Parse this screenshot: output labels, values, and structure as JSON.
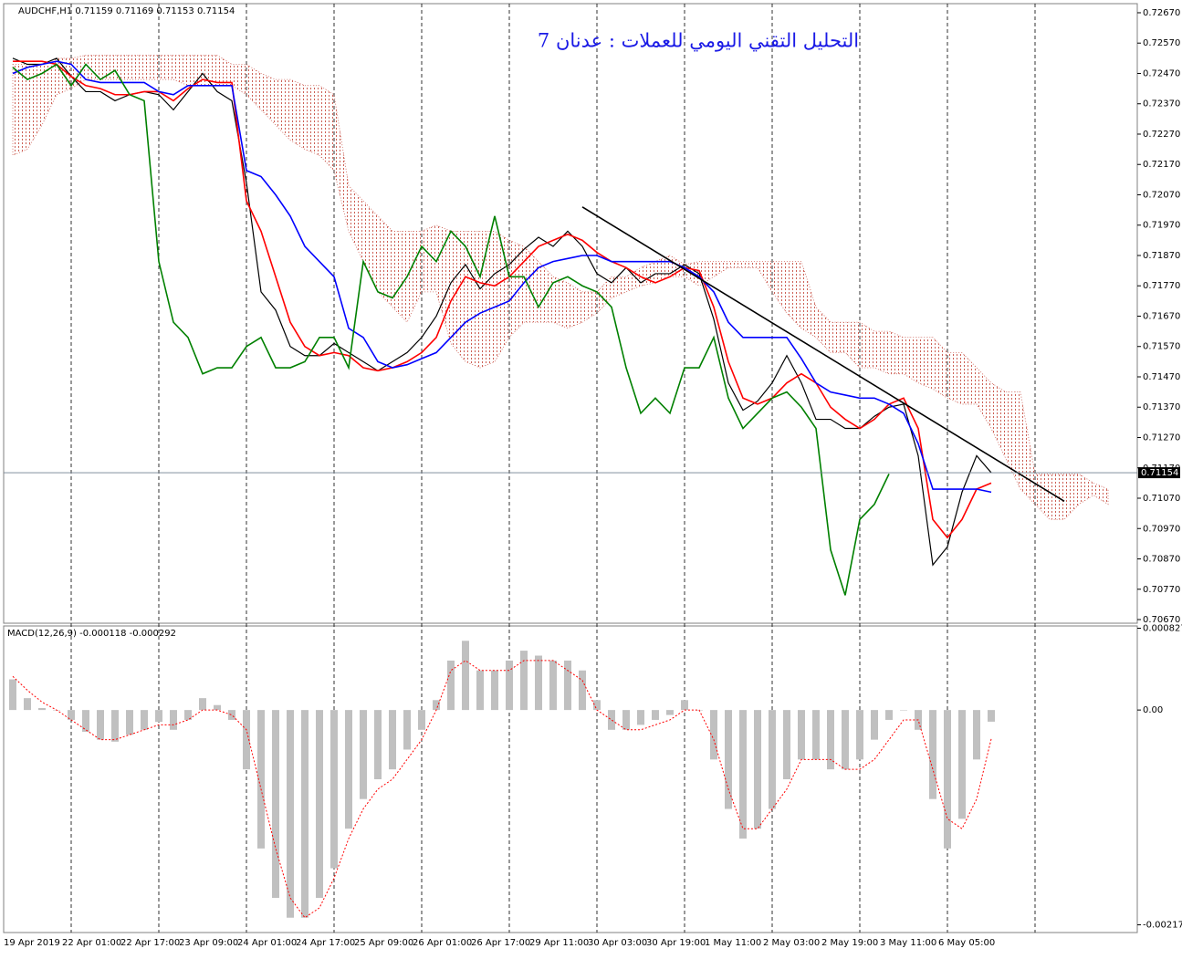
{
  "chart_data": [
    {
      "type": "line",
      "title": "التحليل التقني اليومي للعملات : عدنان 7",
      "symbol_info": "AUDCHF,H1  0.71159 0.71169 0.71153 0.71154",
      "categories": [
        "19 Apr 2019",
        null,
        null,
        null,
        "22 Apr 01:00",
        null,
        null,
        null,
        "22 Apr 17:00",
        null,
        null,
        null,
        "23 Apr 09:00",
        null,
        null,
        null,
        "24 Apr 01:00",
        null,
        null,
        null,
        "24 Apr 17:00",
        null,
        null,
        null,
        "25 Apr 09:00",
        null,
        null,
        null,
        "26 Apr 01:00",
        null,
        null,
        null,
        "26 Apr 17:00",
        null,
        null,
        null,
        "29 Apr 11:00",
        null,
        null,
        null,
        "30 Apr 03:00",
        null,
        null,
        null,
        "30 Apr 19:00",
        null,
        null,
        null,
        "1 May 11:00",
        null,
        null,
        null,
        "2 May 03:00",
        null,
        null,
        null,
        "2 May 19:00",
        null,
        null,
        null,
        "3 May 11:00",
        null,
        null,
        null,
        "6 May 05:00",
        null,
        null,
        null,
        null,
        null,
        null,
        null,
        null,
        null,
        null,
        null
      ],
      "ylim": [
        0.70658,
        0.727
      ],
      "yticks": [
        {
          "value": 0.7267,
          "label": "0.72670"
        },
        {
          "value": 0.7257,
          "label": "0.72570"
        },
        {
          "value": 0.7247,
          "label": "0.72470"
        },
        {
          "value": 0.7237,
          "label": "0.72370"
        },
        {
          "value": 0.7227,
          "label": "0.72270"
        },
        {
          "value": 0.7217,
          "label": "0.72170"
        },
        {
          "value": 0.7207,
          "label": "0.72070"
        },
        {
          "value": 0.7197,
          "label": "0.71970"
        },
        {
          "value": 0.7187,
          "label": "0.71870"
        },
        {
          "value": 0.7177,
          "label": "0.71770"
        },
        {
          "value": 0.7167,
          "label": "0.71670"
        },
        {
          "value": 0.7157,
          "label": "0.71570"
        },
        {
          "value": 0.7147,
          "label": "0.71470"
        },
        {
          "value": 0.7137,
          "label": "0.71370"
        },
        {
          "value": 0.7127,
          "label": "0.71270"
        },
        {
          "value": 0.7117,
          "label": "0.71170"
        },
        {
          "value": 0.7107,
          "label": "0.71070"
        },
        {
          "value": 0.7097,
          "label": "0.70970"
        },
        {
          "value": 0.7087,
          "label": "0.70870"
        },
        {
          "value": 0.7077,
          "label": "0.70770"
        },
        {
          "value": 0.7067,
          "label": "0.70670"
        }
      ],
      "grid": true,
      "cloud": {
        "color": "#c0392b",
        "upper": [
          0.725,
          0.725,
          0.725,
          0.7252,
          0.7252,
          0.7253,
          0.7253,
          0.7253,
          0.7253,
          0.7253,
          0.7253,
          0.7253,
          0.7253,
          0.7253,
          0.7253,
          0.725,
          0.725,
          0.7247,
          0.7245,
          0.7245,
          0.7243,
          0.7243,
          0.724,
          0.721,
          0.7205,
          0.72,
          0.7195,
          0.7195,
          0.7195,
          0.7197,
          0.7195,
          0.7195,
          0.7195,
          0.7195,
          0.7192,
          0.719,
          0.7185,
          0.718,
          0.7178,
          0.7175,
          0.7175,
          0.718,
          0.718,
          0.7183,
          0.7185,
          0.7187,
          0.7184,
          0.7185,
          0.7185,
          0.7185,
          0.7185,
          0.7185,
          0.7185,
          0.7185,
          0.7185,
          0.717,
          0.7165,
          0.7165,
          0.7165,
          0.7162,
          0.7162,
          0.716,
          0.716,
          0.716,
          0.7155,
          0.7155,
          0.715,
          0.7145,
          0.7142,
          0.7142,
          0.7115,
          0.7115,
          0.7115,
          0.7115,
          0.7112,
          0.711
        ],
        "lower": [
          0.722,
          0.7222,
          0.723,
          0.724,
          0.7242,
          0.7245,
          0.7245,
          0.7245,
          0.7245,
          0.7245,
          0.7245,
          0.7245,
          0.7243,
          0.7243,
          0.7243,
          0.7243,
          0.724,
          0.7235,
          0.723,
          0.7225,
          0.7222,
          0.722,
          0.7215,
          0.7195,
          0.7185,
          0.7175,
          0.717,
          0.7165,
          0.7175,
          0.7175,
          0.7158,
          0.7152,
          0.715,
          0.7152,
          0.716,
          0.7165,
          0.7165,
          0.7165,
          0.7163,
          0.7165,
          0.7168,
          0.7173,
          0.7175,
          0.7177,
          0.7178,
          0.718,
          0.718,
          0.7177,
          0.718,
          0.7183,
          0.7183,
          0.7183,
          0.7175,
          0.7168,
          0.7163,
          0.716,
          0.7155,
          0.7155,
          0.715,
          0.715,
          0.7148,
          0.7148,
          0.7145,
          0.7143,
          0.714,
          0.7138,
          0.7138,
          0.713,
          0.712,
          0.711,
          0.7105,
          0.71,
          0.71,
          0.7105,
          0.7108,
          0.7105
        ]
      },
      "series": [
        {
          "color": "#000000",
          "values": [
            0.7252,
            0.725,
            0.725,
            0.7252,
            0.7246,
            0.7241,
            0.7241,
            0.7238,
            0.724,
            0.7241,
            0.724,
            0.7235,
            0.7241,
            0.7247,
            0.7241,
            0.7238,
            0.7211,
            0.7175,
            0.7169,
            0.7157,
            0.7154,
            0.7154,
            0.7158,
            0.7155,
            0.7152,
            0.7149,
            0.7152,
            0.7155,
            0.716,
            0.7167,
            0.7178,
            0.7184,
            0.7176,
            0.7181,
            0.7184,
            0.7189,
            0.7193,
            0.719,
            0.7195,
            0.719,
            0.7181,
            0.7178,
            0.7183,
            0.7178,
            0.7181,
            0.7181,
            0.7184,
            0.7181,
            0.7166,
            0.7145,
            0.7136,
            0.7139,
            0.7145,
            0.7154,
            0.7145,
            0.7133,
            0.7133,
            0.713,
            0.713,
            0.7134,
            0.7137,
            0.7138,
            0.7121,
            0.7085,
            0.7091,
            0.7109,
            0.7121,
            0.71154,
            null,
            null,
            null,
            null,
            null,
            null,
            null,
            null
          ]
        },
        {
          "color": "#ff0000",
          "values": [
            0.7251,
            0.7251,
            0.7251,
            0.725,
            0.7246,
            0.7243,
            0.7242,
            0.724,
            0.724,
            0.7241,
            0.7241,
            0.7238,
            0.7242,
            0.7245,
            0.7244,
            0.7244,
            0.7205,
            0.7195,
            0.718,
            0.7165,
            0.7157,
            0.7154,
            0.7155,
            0.7154,
            0.715,
            0.7149,
            0.715,
            0.7152,
            0.7155,
            0.716,
            0.7172,
            0.718,
            0.7178,
            0.7177,
            0.718,
            0.7185,
            0.719,
            0.7192,
            0.7194,
            0.7192,
            0.7188,
            0.7185,
            0.7183,
            0.718,
            0.7178,
            0.718,
            0.7183,
            0.7182,
            0.717,
            0.7152,
            0.714,
            0.7138,
            0.714,
            0.7145,
            0.7148,
            0.7145,
            0.7137,
            0.7133,
            0.713,
            0.7133,
            0.7138,
            0.714,
            0.713,
            0.71,
            0.7094,
            0.71,
            0.711,
            0.7112,
            null,
            null,
            null,
            null,
            null,
            null,
            null,
            null
          ]
        },
        {
          "color": "#0000ff",
          "values": [
            0.7247,
            0.7249,
            0.725,
            0.7251,
            0.725,
            0.7245,
            0.7244,
            0.7244,
            0.7244,
            0.7244,
            0.7241,
            0.724,
            0.7243,
            0.7243,
            0.7243,
            0.7243,
            0.7215,
            0.7213,
            0.7207,
            0.72,
            0.719,
            0.7185,
            0.718,
            0.7163,
            0.716,
            0.7152,
            0.715,
            0.7151,
            0.7153,
            0.7155,
            0.716,
            0.7165,
            0.7168,
            0.717,
            0.7172,
            0.7178,
            0.7183,
            0.7185,
            0.7186,
            0.7187,
            0.7187,
            0.7185,
            0.7185,
            0.7185,
            0.7185,
            0.7185,
            0.7183,
            0.718,
            0.7175,
            0.7165,
            0.716,
            0.716,
            0.716,
            0.716,
            0.7153,
            0.7145,
            0.7142,
            0.7141,
            0.714,
            0.714,
            0.7138,
            0.7135,
            0.7125,
            0.711,
            0.711,
            0.711,
            0.711,
            0.7109,
            null,
            null,
            null,
            null,
            null,
            null,
            null,
            null
          ]
        },
        {
          "color": "#008000",
          "values": [
            0.7249,
            0.7245,
            0.7247,
            0.725,
            0.7243,
            0.725,
            0.7245,
            0.7248,
            0.724,
            0.7238,
            0.7185,
            0.7165,
            0.716,
            0.7148,
            0.715,
            0.715,
            0.7157,
            0.716,
            0.715,
            0.715,
            0.7152,
            0.716,
            0.716,
            0.715,
            0.7185,
            0.7175,
            0.7173,
            0.718,
            0.719,
            0.7185,
            0.7195,
            0.719,
            0.718,
            0.72,
            0.718,
            0.718,
            0.717,
            0.7178,
            0.718,
            0.7177,
            0.7175,
            0.717,
            0.715,
            0.7135,
            0.714,
            0.7135,
            0.715,
            0.715,
            0.716,
            0.714,
            0.713,
            0.7135,
            0.714,
            0.7142,
            0.7137,
            0.713,
            0.709,
            0.7075,
            0.71,
            0.7105,
            0.7115,
            null,
            null,
            null,
            null,
            null,
            null,
            null,
            null,
            null,
            null,
            null,
            null,
            null,
            null,
            null
          ]
        }
      ],
      "trendline": {
        "color": "#000000",
        "x": [
          39,
          72
        ],
        "values": [
          0.7203,
          0.7106
        ]
      },
      "last_price": {
        "value": 0.71154,
        "label": "0.71154"
      }
    },
    {
      "type": "bar",
      "title": "MACD(12,26,9) -0.000118 -0.000292",
      "ylim": [
        -0.00225,
        0.00085
      ],
      "yticks": [
        {
          "value": 0.000827,
          "label": "0.000827"
        },
        {
          "value": 0,
          "label": "0.00"
        },
        {
          "value": -0.002172,
          "label": "-0.002172"
        }
      ],
      "series": [
        {
          "type": "bar",
          "color": "#c0c0c0",
          "values": [
            0.00031,
            0.00012,
            2e-05,
            0,
            -0.0001,
            -0.00022,
            -0.0003,
            -0.00032,
            -0.00025,
            -0.0002,
            -0.00012,
            -0.0002,
            -0.0001,
            0.00012,
            5e-05,
            -0.0001,
            -0.0006,
            -0.0014,
            -0.0019,
            -0.0021,
            -0.0021,
            -0.0019,
            -0.0016,
            -0.0012,
            -0.0009,
            -0.0007,
            -0.0006,
            -0.0004,
            -0.0002,
            0.0001,
            0.0005,
            0.0007,
            0.0004,
            0.0004,
            0.0005,
            0.0006,
            0.00055,
            0.0005,
            0.0005,
            0.0004,
            0.0001,
            -0.0002,
            -0.0002,
            -0.00015,
            -0.0001,
            -5e-05,
            0.0001,
            0,
            -0.0005,
            -0.001,
            -0.0013,
            -0.0012,
            -0.001,
            -0.0007,
            -0.0005,
            -0.0005,
            -0.0006,
            -0.0006,
            -0.0005,
            -0.0003,
            -0.0001,
            0,
            -0.0002,
            -0.0009,
            -0.0014,
            -0.0011,
            -0.0005,
            -0.000118,
            null,
            null,
            null,
            null,
            null,
            null,
            null,
            null
          ]
        },
        {
          "type": "line",
          "dashed": true,
          "color": "#ff0000",
          "values": [
            0.00034,
            0.0002,
            8e-05,
            0,
            -0.0001,
            -0.0002,
            -0.0003,
            -0.0003,
            -0.00025,
            -0.0002,
            -0.00015,
            -0.00015,
            -0.0001,
            0,
            0,
            -5e-05,
            -0.0002,
            -0.0008,
            -0.0014,
            -0.0019,
            -0.0021,
            -0.002,
            -0.0017,
            -0.0013,
            -0.001,
            -0.0008,
            -0.0007,
            -0.0005,
            -0.0003,
            0,
            0.0004,
            0.0005,
            0.0004,
            0.0004,
            0.0004,
            0.0005,
            0.0005,
            0.0005,
            0.0004,
            0.0003,
            0,
            -0.0001,
            -0.0002,
            -0.0002,
            -0.00015,
            -0.0001,
            0,
            0,
            -0.0003,
            -0.0008,
            -0.0012,
            -0.0012,
            -0.001,
            -0.0008,
            -0.0005,
            -0.0005,
            -0.0005,
            -0.0006,
            -0.0006,
            -0.0005,
            -0.0003,
            -0.0001,
            -0.0001,
            -0.0006,
            -0.0011,
            -0.0012,
            -0.0009,
            -0.000292,
            null,
            null,
            null,
            null,
            null,
            null,
            null,
            null
          ]
        }
      ]
    }
  ]
}
